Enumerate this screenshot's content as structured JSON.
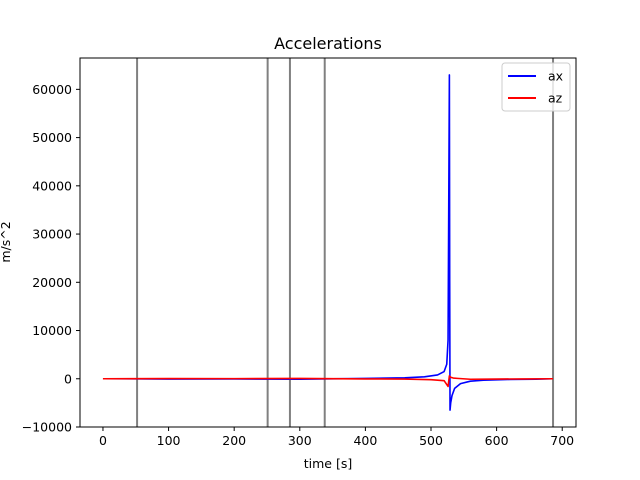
{
  "chart_data": {
    "type": "line",
    "title": "Accelerations",
    "xlabel": "time [s]",
    "ylabel": "m/s^2",
    "xlim": [
      -35,
      721
    ],
    "ylim": [
      -10000,
      66500
    ],
    "xticks": [
      0,
      100,
      200,
      300,
      400,
      500,
      600,
      700
    ],
    "yticks": [
      -10000,
      0,
      10000,
      20000,
      30000,
      40000,
      50000,
      60000
    ],
    "grid": false,
    "legend_position": "top-right",
    "vertical_lines": [
      52,
      251,
      285,
      338,
      686
    ],
    "series": [
      {
        "name": "ax",
        "color": "#0000ff",
        "x": [
          0,
          100,
          200,
          300,
          400,
          460,
          490,
          510,
          520,
          524,
          526,
          527,
          528,
          528.5,
          529,
          530,
          532,
          536,
          545,
          560,
          580,
          620,
          660,
          686
        ],
        "y": [
          0,
          -60,
          -40,
          -80,
          60,
          200,
          400,
          800,
          1500,
          3000,
          8000,
          35000,
          63000,
          20000,
          -6500,
          -5000,
          -3500,
          -2000,
          -1000,
          -500,
          -300,
          -150,
          -80,
          0
        ]
      },
      {
        "name": "az",
        "color": "#ff0000",
        "x": [
          0,
          100,
          200,
          300,
          400,
          460,
          500,
          520,
          526,
          528,
          530,
          534,
          540,
          560,
          600,
          640,
          686
        ],
        "y": [
          0,
          50,
          30,
          60,
          -30,
          -60,
          -200,
          -400,
          -1600,
          600,
          300,
          150,
          80,
          -100,
          -60,
          -30,
          0
        ]
      }
    ]
  }
}
